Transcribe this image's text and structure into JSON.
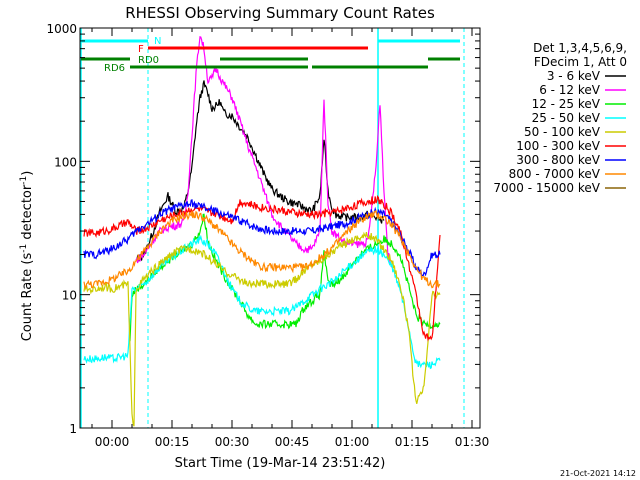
{
  "chart_data": {
    "type": "line",
    "title": "RHESSI Observing Summary Count Rates",
    "xlabel": "Start Time (19-Mar-14 23:51:42)",
    "ylabel_main": "Count Rate (s",
    "ylabel_sup": "-1",
    "ylabel_mid": " detector",
    "ylabel_end": ")",
    "footer_date": "21-Oct-2021 14:12",
    "x_unit": "minutes after 00:00 UT",
    "xlim": [
      -8,
      92
    ],
    "ylim": [
      1,
      1000
    ],
    "y_scale": "log",
    "x_ticks": [
      {
        "v": 0,
        "label": "00:00"
      },
      {
        "v": 15,
        "label": "00:15"
      },
      {
        "v": 30,
        "label": "00:30"
      },
      {
        "v": 45,
        "label": "00:45"
      },
      {
        "v": 60,
        "label": "01:00"
      },
      {
        "v": 75,
        "label": "01:15"
      },
      {
        "v": 90,
        "label": "01:30"
      }
    ],
    "y_ticks": [
      {
        "v": 1,
        "label": "1"
      },
      {
        "v": 10,
        "label": "10"
      },
      {
        "v": 100,
        "label": "100"
      },
      {
        "v": 1000,
        "label": "1000"
      }
    ],
    "legend_header": [
      "Det 1,3,4,5,6,9,",
      "FDecim 1, Att 0"
    ],
    "legend_placement": "right",
    "night_markers": [
      -8,
      66.5
    ],
    "saa_markers": [
      9,
      88
    ],
    "series": [
      {
        "name": "3 - 6 keV",
        "color": "#000000",
        "x": [
          6,
          8,
          10,
          12,
          14,
          16,
          18,
          19,
          20,
          21,
          22,
          23,
          24,
          25,
          26,
          27,
          28,
          30,
          32,
          34,
          36,
          38,
          40,
          42,
          44,
          46,
          48,
          50,
          52,
          53,
          54,
          55,
          56,
          58,
          60,
          62,
          64,
          66,
          68
        ],
        "y": [
          18,
          20,
          28,
          42,
          55,
          42,
          45,
          60,
          90,
          180,
          300,
          380,
          320,
          250,
          260,
          280,
          230,
          220,
          180,
          150,
          110,
          80,
          62,
          55,
          50,
          48,
          45,
          42,
          55,
          150,
          60,
          45,
          40,
          38,
          38,
          38,
          40,
          38,
          36
        ]
      },
      {
        "name": "6 - 12 keV",
        "color": "#ff00ff",
        "x": [
          6,
          8,
          10,
          12,
          14,
          16,
          18,
          19,
          20,
          21,
          22,
          23,
          24,
          25,
          26,
          27,
          28,
          30,
          32,
          34,
          36,
          38,
          40,
          42,
          44,
          46,
          48,
          50,
          52,
          53,
          54,
          55,
          56,
          58,
          60,
          62,
          64,
          66,
          67,
          68,
          69,
          70
        ],
        "y": [
          18,
          20,
          25,
          30,
          32,
          33,
          35,
          60,
          160,
          450,
          900,
          700,
          400,
          420,
          500,
          430,
          380,
          300,
          200,
          130,
          90,
          60,
          40,
          33,
          28,
          24,
          22,
          22,
          30,
          300,
          50,
          30,
          28,
          25,
          24,
          24,
          25,
          90,
          280,
          60,
          20,
          16
        ]
      },
      {
        "name": "12 - 25 keV",
        "color": "#00ee00",
        "x": [
          4.5,
          5,
          6,
          8,
          10,
          12,
          14,
          16,
          18,
          20,
          22,
          23,
          24,
          26,
          28,
          30,
          32,
          34,
          36,
          38,
          40,
          42,
          44,
          46,
          48,
          50,
          52,
          53,
          54,
          56,
          58,
          60,
          62,
          64,
          66,
          68,
          70,
          72,
          74,
          76,
          78,
          80,
          82
        ],
        "y": [
          4.5,
          10,
          11,
          12,
          14,
          16,
          18,
          20,
          22,
          24,
          30,
          40,
          25,
          18,
          14,
          11,
          9,
          7,
          6,
          6,
          6,
          6,
          6,
          6,
          8,
          9,
          10,
          22,
          12,
          12,
          14,
          17,
          20,
          22,
          24,
          26,
          24,
          20,
          12,
          7,
          6,
          6,
          6
        ]
      },
      {
        "name": "25 - 50 keV",
        "color": "#00ffff",
        "x": [
          -7,
          -4,
          -2,
          0,
          2,
          4,
          5,
          6,
          8,
          10,
          12,
          14,
          16,
          18,
          20,
          22,
          24,
          26,
          28,
          30,
          32,
          34,
          36,
          38,
          40,
          42,
          44,
          46,
          48,
          50,
          52,
          54,
          56,
          58,
          60,
          62,
          64,
          66,
          68,
          70,
          72,
          74,
          76,
          78,
          80,
          82
        ],
        "y": [
          3.3,
          3.3,
          3.4,
          3.3,
          3.4,
          3.5,
          11,
          11,
          12,
          14,
          16,
          18,
          20,
          22,
          24,
          26,
          24,
          20,
          15,
          11,
          9,
          8,
          7.5,
          7.5,
          7.5,
          7.5,
          7.5,
          8,
          9,
          10,
          11,
          12,
          13,
          15,
          17,
          19,
          21,
          22,
          20,
          16,
          11,
          6,
          3,
          3,
          3,
          3.2
        ]
      },
      {
        "name": "50 - 100 keV",
        "color": "#cccc00",
        "x": [
          -7,
          -4,
          -2,
          0,
          2,
          4,
          5,
          5.5,
          6,
          8,
          10,
          12,
          14,
          16,
          18,
          20,
          22,
          24,
          26,
          28,
          30,
          32,
          34,
          36,
          38,
          40,
          42,
          44,
          46,
          48,
          50,
          52,
          54,
          56,
          58,
          60,
          62,
          64,
          66,
          68,
          70,
          72,
          74,
          76,
          78,
          80,
          82
        ],
        "y": [
          11,
          11,
          11.5,
          11,
          11.5,
          12,
          1.2,
          1.1,
          11,
          13,
          15,
          17,
          19,
          21,
          22,
          22,
          21,
          19,
          17,
          15,
          14,
          13,
          12,
          12,
          12,
          12,
          12,
          12,
          13,
          15,
          17,
          18,
          20,
          22,
          24,
          26,
          27,
          28,
          26,
          22,
          18,
          12,
          6,
          1.5,
          2,
          10,
          10
        ]
      },
      {
        "name": "100 - 300 keV",
        "color": "#ff0000",
        "x": [
          -7,
          -4,
          -2,
          0,
          2,
          4,
          6,
          8,
          10,
          12,
          14,
          16,
          18,
          20,
          22,
          24,
          26,
          28,
          30,
          32,
          34,
          36,
          38,
          40,
          42,
          44,
          46,
          48,
          50,
          52,
          54,
          56,
          58,
          60,
          62,
          64,
          66,
          68,
          70,
          72,
          74,
          76,
          78,
          80,
          82
        ],
        "y": [
          29,
          29,
          30,
          31,
          33,
          35,
          30,
          31,
          33,
          36,
          38,
          40,
          42,
          44,
          44,
          42,
          40,
          38,
          36,
          50,
          48,
          46,
          45,
          44,
          43,
          42,
          41,
          40,
          40,
          40,
          41,
          42,
          44,
          46,
          48,
          50,
          52,
          48,
          40,
          30,
          18,
          10,
          5,
          4.5,
          28
        ]
      },
      {
        "name": "300 - 800 keV",
        "color": "#0000ff",
        "x": [
          -7,
          -4,
          -2,
          0,
          2,
          4,
          6,
          8,
          10,
          12,
          14,
          16,
          18,
          20,
          22,
          24,
          26,
          28,
          30,
          32,
          34,
          36,
          38,
          40,
          42,
          44,
          46,
          48,
          50,
          52,
          54,
          56,
          58,
          60,
          62,
          64,
          66,
          68,
          70,
          72,
          74,
          76,
          78,
          80,
          82
        ],
        "y": [
          20,
          20,
          21,
          22,
          24,
          26,
          30,
          33,
          36,
          40,
          43,
          45,
          47,
          48,
          46,
          44,
          42,
          40,
          38,
          36,
          34,
          32,
          31,
          30,
          30,
          30,
          30,
          30,
          30,
          31,
          32,
          33,
          34,
          36,
          38,
          40,
          42,
          40,
          35,
          28,
          22,
          16,
          14,
          20,
          20
        ]
      },
      {
        "name": "800 - 7000 keV",
        "color": "#ff8800",
        "x": [
          -7,
          -4,
          -2,
          0,
          2,
          4,
          6,
          8,
          10,
          12,
          14,
          16,
          18,
          20,
          22,
          24,
          26,
          28,
          30,
          32,
          34,
          36,
          38,
          40,
          42,
          44,
          46,
          48,
          50,
          52,
          54,
          56,
          58,
          60,
          62,
          64,
          66,
          68,
          70,
          72,
          74,
          76,
          78,
          80,
          82
        ],
        "y": [
          12,
          12,
          12.5,
          13,
          14,
          15,
          18,
          21,
          25,
          30,
          34,
          37,
          39,
          40,
          39,
          36,
          32,
          28,
          24,
          21,
          19,
          17,
          16,
          16,
          16,
          16,
          16,
          16,
          17,
          19,
          21,
          24,
          28,
          32,
          36,
          39,
          40,
          38,
          33,
          27,
          21,
          16,
          13,
          12,
          12
        ]
      },
      {
        "name": "7000 - 15000 keV",
        "color": "#8b6508",
        "x": [],
        "y": []
      }
    ],
    "bars": [
      {
        "label": "N",
        "color": "#00ffff",
        "lane": 0,
        "segments": [
          [
            -8,
            9
          ],
          [
            66.5,
            87
          ]
        ]
      },
      {
        "label": "F",
        "color": "#ff0000",
        "lane": 1,
        "segments": [
          [
            9,
            64
          ]
        ]
      },
      {
        "label": "RD0",
        "color": "#008000",
        "lane": 2,
        "segments": [
          [
            -8,
            4.5
          ],
          [
            27,
            49
          ],
          [
            79,
            87
          ]
        ]
      },
      {
        "label": "RD6",
        "color": "#008000",
        "lane": 3,
        "segments": [
          [
            4.5,
            49
          ],
          [
            50,
            79
          ]
        ]
      }
    ]
  }
}
